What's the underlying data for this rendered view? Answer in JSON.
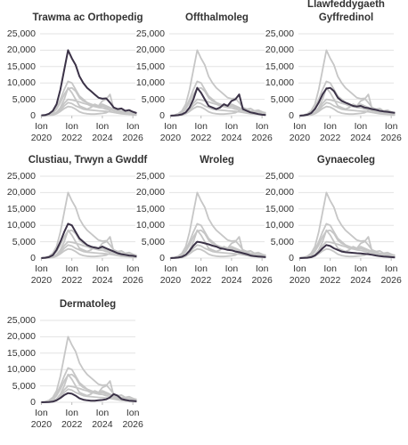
{
  "chart_data": [
    {
      "type": "line",
      "title": "Trawma ac Orthopedig",
      "x": [
        "2020-01",
        "2020-04",
        "2020-07",
        "2020-10",
        "2021-01",
        "2021-04",
        "2021-07",
        "2021-10",
        "2022-01",
        "2022-04",
        "2022-07",
        "2022-10",
        "2023-01",
        "2023-04",
        "2023-07",
        "2023-10",
        "2024-01",
        "2024-04",
        "2024-07",
        "2024-10",
        "2025-01",
        "2025-04",
        "2025-07",
        "2025-10",
        "2026-01",
        "2026-04"
      ],
      "values": [
        100,
        200,
        600,
        1500,
        3500,
        8000,
        14000,
        20000,
        17500,
        15500,
        12000,
        10000,
        8500,
        7500,
        6500,
        5500,
        5200,
        5300,
        4000,
        2500,
        2000,
        2200,
        1500,
        1700,
        1200,
        800
      ],
      "color": "#3b3247",
      "other_color": "#c6c6c6",
      "grid": true,
      "xlim": [
        "2019-12",
        "2026-03"
      ],
      "xticks": [
        {
          "value": "2020-01",
          "label": "Ion 2020"
        },
        {
          "value": "2022-01",
          "label": "Ion 2022"
        },
        {
          "value": "2024-01",
          "label": "Ion 2024"
        },
        {
          "value": "2026-01",
          "label": "Ion 2026"
        }
      ],
      "ylim": [
        0,
        25000
      ],
      "yticks": [
        0,
        {
          "value": 5000,
          "label": "5,000"
        },
        {
          "value": 10000,
          "label": "10,000"
        },
        {
          "value": 15000,
          "label": "15,000"
        },
        {
          "value": 20000,
          "label": "20,000"
        },
        {
          "value": 25000,
          "label": "25,000"
        }
      ]
    },
    {
      "type": "line",
      "title": "Offthalmoleg",
      "x": [
        "2020-01",
        "2020-04",
        "2020-07",
        "2020-10",
        "2021-01",
        "2021-04",
        "2021-07",
        "2021-10",
        "2022-01",
        "2022-04",
        "2022-07",
        "2022-10",
        "2023-01",
        "2023-04",
        "2023-07",
        "2023-10",
        "2024-01",
        "2024-04",
        "2024-07",
        "2024-10",
        "2025-01",
        "2025-04",
        "2025-07",
        "2025-10",
        "2026-01",
        "2026-04"
      ],
      "values": [
        0,
        50,
        150,
        400,
        1000,
        2500,
        5000,
        8500,
        7000,
        5000,
        3000,
        2500,
        2000,
        2500,
        3500,
        3000,
        4500,
        5000,
        6500,
        2000,
        1500,
        1000,
        800,
        500,
        300,
        200
      ],
      "color": "#3b3247",
      "other_color": "#c6c6c6",
      "grid": true,
      "xlim": [
        "2019-12",
        "2026-03"
      ],
      "xticks": [
        {
          "value": "2020-01",
          "label": "Ion 2020"
        },
        {
          "value": "2022-01",
          "label": "Ion 2022"
        },
        {
          "value": "2024-01",
          "label": "Ion 2024"
        },
        {
          "value": "2026-01",
          "label": "Ion 2026"
        }
      ],
      "ylim": [
        0,
        25000
      ],
      "yticks": [
        0,
        {
          "value": 5000,
          "label": "5,000"
        },
        {
          "value": 10000,
          "label": "10,000"
        },
        {
          "value": 15000,
          "label": "15,000"
        },
        {
          "value": 20000,
          "label": "20,000"
        },
        {
          "value": 25000,
          "label": "25,000"
        }
      ]
    },
    {
      "type": "line",
      "title": "Llawfeddygaeth Gyffredinol",
      "x": [
        "2020-01",
        "2020-04",
        "2020-07",
        "2020-10",
        "2021-01",
        "2021-04",
        "2021-07",
        "2021-10",
        "2022-01",
        "2022-04",
        "2022-07",
        "2022-10",
        "2023-01",
        "2023-04",
        "2023-07",
        "2023-10",
        "2024-01",
        "2024-04",
        "2024-07",
        "2024-10",
        "2025-01",
        "2025-04",
        "2025-07",
        "2025-10",
        "2026-01",
        "2026-04"
      ],
      "values": [
        0,
        100,
        300,
        800,
        2000,
        4000,
        6500,
        8300,
        8500,
        7500,
        5500,
        4500,
        4000,
        3500,
        3000,
        2800,
        3000,
        2500,
        2300,
        2000,
        1800,
        1500,
        1300,
        1200,
        1000,
        900
      ],
      "color": "#3b3247",
      "other_color": "#c6c6c6",
      "grid": true,
      "xlim": [
        "2019-12",
        "2026-03"
      ],
      "xticks": [
        {
          "value": "2020-01",
          "label": "Ion 2020"
        },
        {
          "value": "2022-01",
          "label": "Ion 2022"
        },
        {
          "value": "2024-01",
          "label": "Ion 2024"
        },
        {
          "value": "2026-01",
          "label": "Ion 2026"
        }
      ],
      "ylim": [
        0,
        25000
      ],
      "yticks": [
        0,
        {
          "value": 5000,
          "label": "5,000"
        },
        {
          "value": 10000,
          "label": "10,000"
        },
        {
          "value": 15000,
          "label": "15,000"
        },
        {
          "value": 20000,
          "label": "20,000"
        },
        {
          "value": 25000,
          "label": "25,000"
        }
      ]
    },
    {
      "type": "line",
      "title": "Clustiau, Trwyn a Gwddf",
      "x": [
        "2020-01",
        "2020-04",
        "2020-07",
        "2020-10",
        "2021-01",
        "2021-04",
        "2021-07",
        "2021-10",
        "2022-01",
        "2022-04",
        "2022-07",
        "2022-10",
        "2023-01",
        "2023-04",
        "2023-07",
        "2023-10",
        "2024-01",
        "2024-04",
        "2024-07",
        "2024-10",
        "2025-01",
        "2025-04",
        "2025-07",
        "2025-10",
        "2026-01",
        "2026-04"
      ],
      "values": [
        0,
        100,
        300,
        900,
        2500,
        5000,
        8000,
        10500,
        10000,
        8000,
        6000,
        5000,
        4000,
        3500,
        3200,
        3000,
        3500,
        3000,
        2500,
        2000,
        1500,
        1200,
        1000,
        800,
        700,
        500
      ],
      "color": "#3b3247",
      "other_color": "#c6c6c6",
      "grid": true,
      "xlim": [
        "2019-12",
        "2026-03"
      ],
      "xticks": [
        {
          "value": "2020-01",
          "label": "Ion 2020"
        },
        {
          "value": "2022-01",
          "label": "Ion 2022"
        },
        {
          "value": "2024-01",
          "label": "Ion 2024"
        },
        {
          "value": "2026-01",
          "label": "Ion 2026"
        }
      ],
      "ylim": [
        0,
        25000
      ],
      "yticks": [
        0,
        {
          "value": 5000,
          "label": "5,000"
        },
        {
          "value": 10000,
          "label": "10,000"
        },
        {
          "value": 15000,
          "label": "15,000"
        },
        {
          "value": 20000,
          "label": "20,000"
        },
        {
          "value": 25000,
          "label": "25,000"
        }
      ]
    },
    {
      "type": "line",
      "title": "Wroleg",
      "x": [
        "2020-01",
        "2020-04",
        "2020-07",
        "2020-10",
        "2021-01",
        "2021-04",
        "2021-07",
        "2021-10",
        "2022-01",
        "2022-04",
        "2022-07",
        "2022-10",
        "2023-01",
        "2023-04",
        "2023-07",
        "2023-10",
        "2024-01",
        "2024-04",
        "2024-07",
        "2024-10",
        "2025-01",
        "2025-04",
        "2025-07",
        "2025-10",
        "2026-01",
        "2026-04"
      ],
      "values": [
        0,
        50,
        150,
        400,
        1000,
        2200,
        3800,
        5000,
        4800,
        4500,
        4200,
        3800,
        3500,
        3000,
        2800,
        2500,
        2400,
        2000,
        1800,
        1500,
        1200,
        800,
        600,
        500,
        400,
        300
      ],
      "color": "#3b3247",
      "other_color": "#c6c6c6",
      "grid": true,
      "xlim": [
        "2019-12",
        "2026-03"
      ],
      "xticks": [
        {
          "value": "2020-01",
          "label": "Ion 2020"
        },
        {
          "value": "2022-01",
          "label": "Ion 2022"
        },
        {
          "value": "2024-01",
          "label": "Ion 2024"
        },
        {
          "value": "2026-01",
          "label": "Ion 2026"
        }
      ],
      "ylim": [
        0,
        25000
      ],
      "yticks": [
        0,
        {
          "value": 5000,
          "label": "5,000"
        },
        {
          "value": 10000,
          "label": "10,000"
        },
        {
          "value": 15000,
          "label": "15,000"
        },
        {
          "value": 20000,
          "label": "20,000"
        },
        {
          "value": 25000,
          "label": "25,000"
        }
      ]
    },
    {
      "type": "line",
      "title": "Gynaecoleg",
      "x": [
        "2020-01",
        "2020-04",
        "2020-07",
        "2020-10",
        "2021-01",
        "2021-04",
        "2021-07",
        "2021-10",
        "2022-01",
        "2022-04",
        "2022-07",
        "2022-10",
        "2023-01",
        "2023-04",
        "2023-07",
        "2023-10",
        "2024-01",
        "2024-04",
        "2024-07",
        "2024-10",
        "2025-01",
        "2025-04",
        "2025-07",
        "2025-10",
        "2026-01",
        "2026-04"
      ],
      "values": [
        0,
        50,
        100,
        300,
        800,
        1800,
        3000,
        4000,
        3700,
        3000,
        2500,
        2000,
        1800,
        1700,
        1600,
        1500,
        1400,
        1300,
        1200,
        1000,
        800,
        600,
        500,
        400,
        300,
        200
      ],
      "color": "#3b3247",
      "other_color": "#c6c6c6",
      "grid": true,
      "xlim": [
        "2019-12",
        "2026-03"
      ],
      "xticks": [
        {
          "value": "2020-01",
          "label": "Ion 2020"
        },
        {
          "value": "2022-01",
          "label": "Ion 2022"
        },
        {
          "value": "2024-01",
          "label": "Ion 2024"
        },
        {
          "value": "2026-01",
          "label": "Ion 2026"
        }
      ],
      "ylim": [
        0,
        25000
      ],
      "yticks": [
        0,
        {
          "value": 5000,
          "label": "5,000"
        },
        {
          "value": 10000,
          "label": "10,000"
        },
        {
          "value": 15000,
          "label": "15,000"
        },
        {
          "value": 20000,
          "label": "20,000"
        },
        {
          "value": 25000,
          "label": "25,000"
        }
      ]
    },
    {
      "type": "line",
      "title": "Dermatoleg",
      "x": [
        "2020-01",
        "2020-04",
        "2020-07",
        "2020-10",
        "2021-01",
        "2021-04",
        "2021-07",
        "2021-10",
        "2022-01",
        "2022-04",
        "2022-07",
        "2022-10",
        "2023-01",
        "2023-04",
        "2023-07",
        "2023-10",
        "2024-01",
        "2024-04",
        "2024-07",
        "2024-10",
        "2025-01",
        "2025-04",
        "2025-07",
        "2025-10",
        "2026-01",
        "2026-04"
      ],
      "values": [
        0,
        30,
        80,
        200,
        600,
        1300,
        2200,
        2800,
        2600,
        2000,
        1200,
        800,
        600,
        500,
        500,
        600,
        700,
        900,
        1500,
        2500,
        2000,
        1000,
        700,
        500,
        400,
        300
      ],
      "color": "#3b3247",
      "other_color": "#c6c6c6",
      "grid": true,
      "xlim": [
        "2019-12",
        "2026-03"
      ],
      "xticks": [
        {
          "value": "2020-01",
          "label": "Ion 2020"
        },
        {
          "value": "2022-01",
          "label": "Ion 2022"
        },
        {
          "value": "2024-01",
          "label": "Ion 2024"
        },
        {
          "value": "2026-01",
          "label": "Ion 2026"
        }
      ],
      "ylim": [
        0,
        25000
      ],
      "yticks": [
        0,
        {
          "value": 5000,
          "label": "5,000"
        },
        {
          "value": 10000,
          "label": "10,000"
        },
        {
          "value": 15000,
          "label": "15,000"
        },
        {
          "value": 20000,
          "label": "20,000"
        },
        {
          "value": 25000,
          "label": "25,000"
        }
      ]
    }
  ]
}
